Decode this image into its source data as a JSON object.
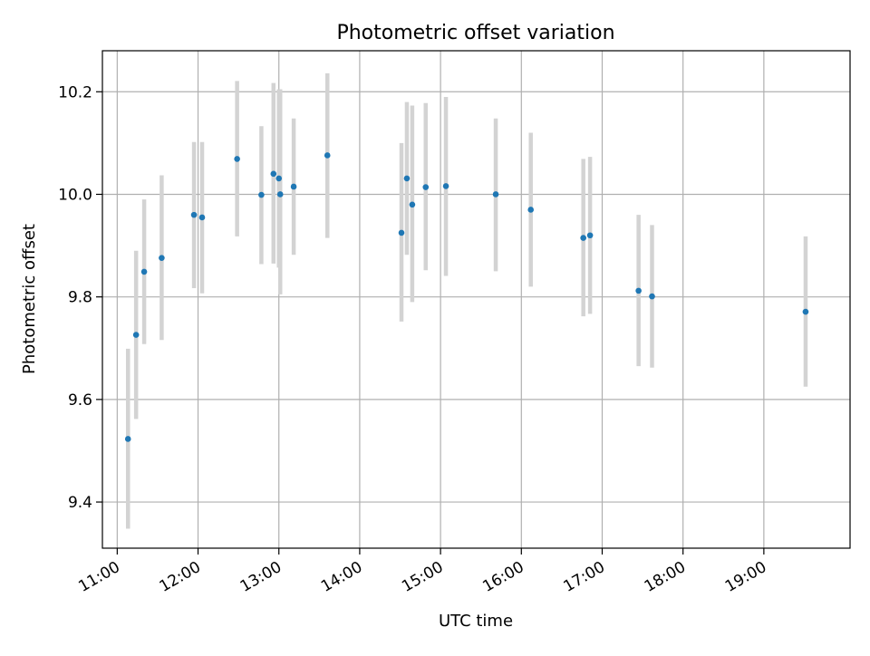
{
  "chart_data": {
    "type": "scatter",
    "title": "Photometric offset variation",
    "xlabel": "UTC time",
    "ylabel": "Photometric offset",
    "x_tick_labels": [
      "11:00",
      "12:00",
      "13:00",
      "14:00",
      "15:00",
      "16:00",
      "17:00",
      "18:00",
      "19:00"
    ],
    "y_tick_labels": [
      "9.4",
      "9.6",
      "9.8",
      "10.0",
      "10.2"
    ],
    "y_ticks": [
      9.4,
      9.6,
      9.8,
      10.0,
      10.2
    ],
    "xlim": [
      "10:49",
      "20:04"
    ],
    "ylim": [
      9.31,
      10.28
    ],
    "grid": true,
    "legend": "none",
    "colors": {
      "marker": "#1f77b4",
      "errorbar": "#d3d3d3",
      "grid": "#b0b0b0"
    },
    "series": [
      {
        "x": [
          "11:08",
          "11:14",
          "11:20",
          "11:33",
          "11:57",
          "12:03",
          "12:29",
          "12:47",
          "12:56",
          "13:00",
          "13:01",
          "13:11",
          "13:36",
          "14:31",
          "14:35",
          "14:39",
          "14:49",
          "15:04",
          "15:41",
          "16:07",
          "16:46",
          "16:51",
          "17:27",
          "17:37",
          "19:31"
        ],
        "y": [
          9.523,
          9.726,
          9.849,
          9.876,
          9.96,
          9.955,
          10.069,
          9.999,
          10.04,
          10.031,
          10.0,
          10.015,
          10.076,
          9.925,
          10.031,
          9.98,
          10.014,
          10.016,
          10.0,
          9.97,
          9.915,
          9.92,
          9.812,
          9.801,
          9.771
        ],
        "err_low": [
          9.348,
          9.562,
          9.708,
          9.716,
          9.817,
          9.807,
          9.918,
          9.864,
          9.865,
          9.857,
          9.805,
          9.882,
          9.915,
          9.752,
          9.882,
          9.79,
          9.852,
          9.841,
          9.85,
          9.82,
          9.762,
          9.767,
          9.665,
          9.662,
          9.625
        ],
        "err_high": [
          9.699,
          9.89,
          9.99,
          10.037,
          10.102,
          10.102,
          10.221,
          10.133,
          10.217,
          10.205,
          10.205,
          10.148,
          10.236,
          10.1,
          10.18,
          10.173,
          10.178,
          10.19,
          10.148,
          10.12,
          10.069,
          10.073,
          9.96,
          9.94,
          9.918
        ]
      }
    ]
  }
}
